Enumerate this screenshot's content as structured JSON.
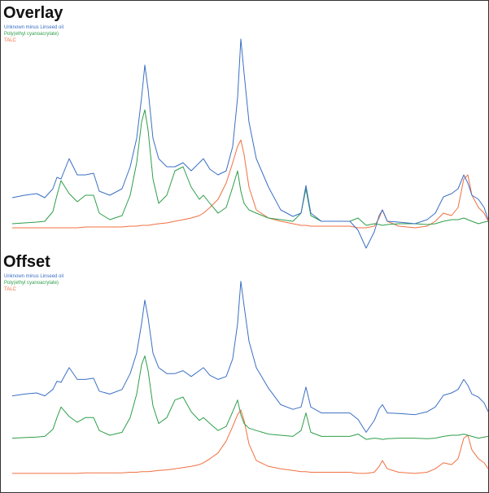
{
  "chart_data": [
    {
      "type": "line",
      "title": "Overlay",
      "x": [
        0,
        15,
        30,
        40,
        50,
        55,
        60,
        70,
        80,
        90,
        100,
        107,
        120,
        135,
        145,
        153,
        159,
        163,
        167,
        173,
        180,
        190,
        200,
        210,
        220,
        230,
        235,
        243,
        253,
        263,
        271,
        277,
        281,
        285,
        291,
        300,
        315,
        330,
        345,
        355,
        361,
        367,
        380,
        400,
        415,
        425,
        435,
        445,
        451,
        455,
        461,
        475,
        495,
        510,
        520,
        530,
        540,
        548,
        555,
        560,
        565,
        573,
        580,
        585
      ],
      "xlim": [
        0,
        585
      ],
      "ylim": [
        0,
        270
      ],
      "series": [
        {
          "name": "Unknown minus Linseed oil",
          "color": "#3a6fc4",
          "values": [
            67,
            70,
            72,
            67,
            78,
            92,
            90,
            115,
            95,
            95,
            97,
            75,
            70,
            78,
            105,
            140,
            190,
            230,
            200,
            140,
            115,
            105,
            105,
            110,
            100,
            110,
            115,
            102,
            95,
            100,
            130,
            190,
            262,
            220,
            160,
            115,
            80,
            52,
            44,
            48,
            82,
            48,
            38,
            38,
            38,
            27,
            5,
            25,
            45,
            52,
            38,
            37,
            35,
            40,
            48,
            68,
            72,
            78,
            95,
            85,
            70,
            65,
            55,
            40
          ]
        },
        {
          "name": "Poly(ethyl cyanoacrylate)",
          "color": "#2e9e4a",
          "values": [
            35,
            36,
            37,
            38,
            50,
            70,
            88,
            72,
            62,
            70,
            70,
            48,
            40,
            45,
            70,
            110,
            160,
            175,
            150,
            90,
            60,
            70,
            100,
            105,
            80,
            65,
            70,
            60,
            48,
            55,
            80,
            100,
            75,
            60,
            52,
            48,
            42,
            40,
            38,
            48,
            78,
            45,
            38,
            38,
            38,
            42,
            33,
            35,
            34,
            33,
            34,
            35,
            35,
            34,
            35,
            38,
            40,
            40,
            42,
            40,
            38,
            35,
            37,
            38
          ]
        },
        {
          "name": "TALC",
          "color": "#f07040",
          "values": [
            30,
            30,
            30,
            30,
            30,
            30,
            30,
            30,
            30,
            31,
            31,
            31,
            31,
            31,
            32,
            32,
            33,
            33,
            33,
            34,
            35,
            36,
            38,
            40,
            42,
            45,
            48,
            55,
            65,
            85,
            110,
            130,
            138,
            120,
            80,
            52,
            42,
            38,
            35,
            33,
            33,
            32,
            32,
            32,
            32,
            30,
            30,
            32,
            42,
            52,
            38,
            32,
            30,
            32,
            38,
            48,
            45,
            55,
            90,
            95,
            70,
            55,
            48,
            38
          ]
        }
      ]
    },
    {
      "type": "line",
      "title": "Offset",
      "x": [
        0,
        15,
        30,
        40,
        50,
        55,
        60,
        70,
        80,
        90,
        100,
        107,
        120,
        135,
        145,
        153,
        159,
        163,
        167,
        173,
        180,
        190,
        200,
        210,
        220,
        230,
        235,
        243,
        253,
        263,
        271,
        277,
        281,
        285,
        291,
        300,
        315,
        330,
        345,
        355,
        361,
        367,
        380,
        400,
        415,
        425,
        435,
        445,
        451,
        455,
        461,
        475,
        495,
        510,
        520,
        530,
        540,
        548,
        555,
        560,
        565,
        573,
        580,
        585
      ],
      "xlim": [
        0,
        585
      ],
      "ylim": [
        0,
        360
      ],
      "series": [
        {
          "name": "Unknown minus Linseed oil",
          "color": "#3a6fc4",
          "values": [
            157,
            160,
            162,
            157,
            168,
            182,
            180,
            205,
            185,
            185,
            187,
            165,
            160,
            168,
            195,
            230,
            280,
            320,
            290,
            230,
            205,
            195,
            195,
            200,
            190,
            200,
            205,
            192,
            185,
            190,
            220,
            280,
            352,
            310,
            250,
            205,
            170,
            142,
            134,
            138,
            172,
            138,
            128,
            128,
            128,
            117,
            95,
            115,
            135,
            142,
            128,
            127,
            125,
            130,
            138,
            158,
            162,
            168,
            185,
            175,
            160,
            155,
            145,
            130
          ]
        },
        {
          "name": "Poly(ethyl cyanoacrylate)",
          "color": "#2e9e4a",
          "values": [
            85,
            86,
            87,
            88,
            100,
            120,
            138,
            122,
            112,
            120,
            120,
            98,
            90,
            95,
            120,
            160,
            210,
            225,
            200,
            140,
            110,
            120,
            150,
            155,
            130,
            115,
            120,
            110,
            98,
            105,
            130,
            150,
            125,
            110,
            102,
            98,
            92,
            90,
            88,
            98,
            128,
            95,
            88,
            88,
            88,
            92,
            83,
            85,
            84,
            83,
            84,
            85,
            85,
            84,
            85,
            88,
            90,
            90,
            92,
            90,
            88,
            85,
            87,
            88
          ]
        },
        {
          "name": "TALC",
          "color": "#f07040",
          "values": [
            25,
            25,
            25,
            25,
            25,
            25,
            25,
            25,
            25,
            26,
            26,
            26,
            26,
            26,
            27,
            27,
            28,
            28,
            28,
            29,
            30,
            31,
            33,
            35,
            37,
            40,
            43,
            50,
            60,
            80,
            105,
            125,
            133,
            115,
            75,
            47,
            37,
            33,
            30,
            28,
            28,
            27,
            27,
            27,
            27,
            25,
            25,
            27,
            37,
            47,
            33,
            27,
            25,
            27,
            33,
            43,
            40,
            50,
            85,
            90,
            65,
            50,
            43,
            33
          ]
        }
      ]
    }
  ]
}
